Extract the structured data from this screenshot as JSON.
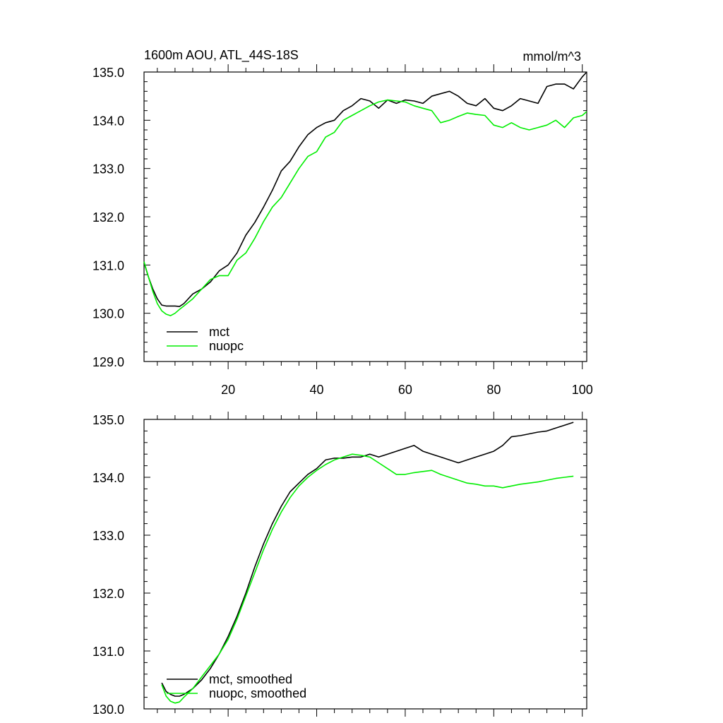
{
  "colors": {
    "mct": "#000000",
    "nuopc": "#00ee00",
    "axis": "#000000"
  },
  "chart_data": [
    {
      "type": "line",
      "title": "1600m AOU, ATL_44S-18S",
      "units": "mmol/m^3",
      "xlim": [
        1,
        101
      ],
      "ylim": [
        129.0,
        135.0
      ],
      "y_ticks": [
        129.0,
        130.0,
        131.0,
        132.0,
        133.0,
        134.0,
        135.0
      ],
      "y_tick_labels": [
        "129.0",
        "130.0",
        "131.0",
        "132.0",
        "133.0",
        "134.0",
        "135.0"
      ],
      "x_ticks": [
        20,
        40,
        60,
        80,
        100
      ],
      "x_tick_labels": [
        "20",
        "40",
        "60",
        "80",
        "100"
      ],
      "legend": [
        "mct",
        "nuopc"
      ],
      "series": [
        {
          "name": "mct",
          "x": [
            1,
            2,
            3,
            4,
            5,
            6,
            7,
            8,
            9,
            10,
            12,
            14,
            16,
            18,
            20,
            22,
            24,
            26,
            28,
            30,
            32,
            34,
            36,
            38,
            40,
            42,
            44,
            46,
            48,
            50,
            52,
            54,
            56,
            58,
            60,
            62,
            64,
            66,
            68,
            70,
            72,
            74,
            76,
            78,
            80,
            82,
            84,
            86,
            88,
            90,
            92,
            94,
            96,
            98,
            100,
            101
          ],
          "values": [
            131.05,
            130.75,
            130.5,
            130.3,
            130.17,
            130.15,
            130.15,
            130.15,
            130.14,
            130.2,
            130.4,
            130.5,
            130.65,
            130.88,
            131.0,
            131.25,
            131.62,
            131.88,
            132.2,
            132.55,
            132.95,
            133.15,
            133.45,
            133.7,
            133.85,
            133.95,
            134.0,
            134.2,
            134.3,
            134.45,
            134.4,
            134.25,
            134.42,
            134.35,
            134.42,
            134.4,
            134.35,
            134.5,
            134.55,
            134.6,
            134.5,
            134.35,
            134.3,
            134.45,
            134.25,
            134.2,
            134.3,
            134.45,
            134.4,
            134.35,
            134.7,
            134.75,
            134.75,
            134.65,
            134.9,
            135.0
          ]
        },
        {
          "name": "nuopc",
          "x": [
            1,
            2,
            3,
            4,
            5,
            6,
            7,
            8,
            9,
            10,
            12,
            14,
            16,
            18,
            20,
            22,
            24,
            26,
            28,
            30,
            32,
            34,
            36,
            38,
            40,
            42,
            44,
            46,
            48,
            50,
            52,
            54,
            56,
            58,
            60,
            62,
            64,
            66,
            68,
            70,
            72,
            74,
            76,
            78,
            80,
            82,
            84,
            86,
            88,
            90,
            92,
            94,
            96,
            98,
            100,
            101
          ],
          "values": [
            131.07,
            130.75,
            130.45,
            130.2,
            130.05,
            129.98,
            129.95,
            130.0,
            130.08,
            130.15,
            130.3,
            130.5,
            130.7,
            130.78,
            130.78,
            131.1,
            131.25,
            131.55,
            131.9,
            132.2,
            132.4,
            132.7,
            133.0,
            133.25,
            133.35,
            133.65,
            133.75,
            134.0,
            134.1,
            134.2,
            134.3,
            134.38,
            134.42,
            134.4,
            134.38,
            134.3,
            134.25,
            134.2,
            133.95,
            134.0,
            134.08,
            134.15,
            134.12,
            134.1,
            133.9,
            133.85,
            133.95,
            133.85,
            133.8,
            133.85,
            133.9,
            134.0,
            133.85,
            134.05,
            134.1,
            134.18
          ]
        }
      ]
    },
    {
      "type": "line",
      "xlim": [
        1,
        101
      ],
      "ylim": [
        130.0,
        135.0
      ],
      "y_ticks": [
        130.0,
        131.0,
        132.0,
        133.0,
        134.0,
        135.0
      ],
      "y_tick_labels": [
        "130.0",
        "131.0",
        "132.0",
        "133.0",
        "134.0",
        "135.0"
      ],
      "x_ticks": [
        20,
        40,
        60,
        80,
        100
      ],
      "legend": [
        "mct, smoothed",
        "nuopc, smoothed"
      ],
      "series": [
        {
          "name": "mct, smoothed",
          "x": [
            5,
            6,
            7,
            8,
            9,
            10,
            12,
            14,
            16,
            18,
            20,
            22,
            24,
            26,
            28,
            30,
            32,
            34,
            36,
            38,
            40,
            42,
            44,
            46,
            48,
            50,
            52,
            54,
            56,
            58,
            60,
            62,
            64,
            66,
            68,
            70,
            72,
            74,
            76,
            78,
            80,
            82,
            84,
            86,
            88,
            90,
            92,
            94,
            96,
            98
          ],
          "values": [
            130.45,
            130.3,
            130.25,
            130.22,
            130.22,
            130.25,
            130.35,
            130.5,
            130.7,
            130.95,
            131.25,
            131.6,
            132.0,
            132.45,
            132.85,
            133.2,
            133.5,
            133.75,
            133.9,
            134.05,
            134.15,
            134.3,
            134.33,
            134.33,
            134.35,
            134.35,
            134.4,
            134.35,
            134.4,
            134.45,
            134.5,
            134.55,
            134.45,
            134.4,
            134.35,
            134.3,
            134.25,
            134.3,
            134.35,
            134.4,
            134.45,
            134.55,
            134.7,
            134.72,
            134.75,
            134.78,
            134.8,
            134.85,
            134.9,
            134.95
          ]
        },
        {
          "name": "nuopc, smoothed",
          "x": [
            5,
            6,
            7,
            8,
            9,
            10,
            12,
            14,
            16,
            18,
            20,
            22,
            24,
            26,
            28,
            30,
            32,
            34,
            36,
            38,
            40,
            42,
            44,
            46,
            48,
            50,
            52,
            54,
            56,
            58,
            60,
            62,
            64,
            66,
            68,
            70,
            72,
            74,
            76,
            78,
            80,
            82,
            84,
            86,
            88,
            90,
            92,
            94,
            96,
            98
          ],
          "values": [
            130.42,
            130.22,
            130.13,
            130.1,
            130.12,
            130.2,
            130.35,
            130.55,
            130.75,
            130.95,
            131.2,
            131.55,
            131.95,
            132.35,
            132.75,
            133.1,
            133.4,
            133.65,
            133.85,
            134.0,
            134.12,
            134.22,
            134.3,
            134.35,
            134.4,
            134.38,
            134.35,
            134.25,
            134.15,
            134.05,
            134.05,
            134.08,
            134.1,
            134.12,
            134.05,
            134.0,
            133.95,
            133.9,
            133.88,
            133.85,
            133.85,
            133.82,
            133.85,
            133.88,
            133.9,
            133.92,
            133.95,
            133.98,
            134.0,
            134.02
          ]
        }
      ]
    }
  ]
}
